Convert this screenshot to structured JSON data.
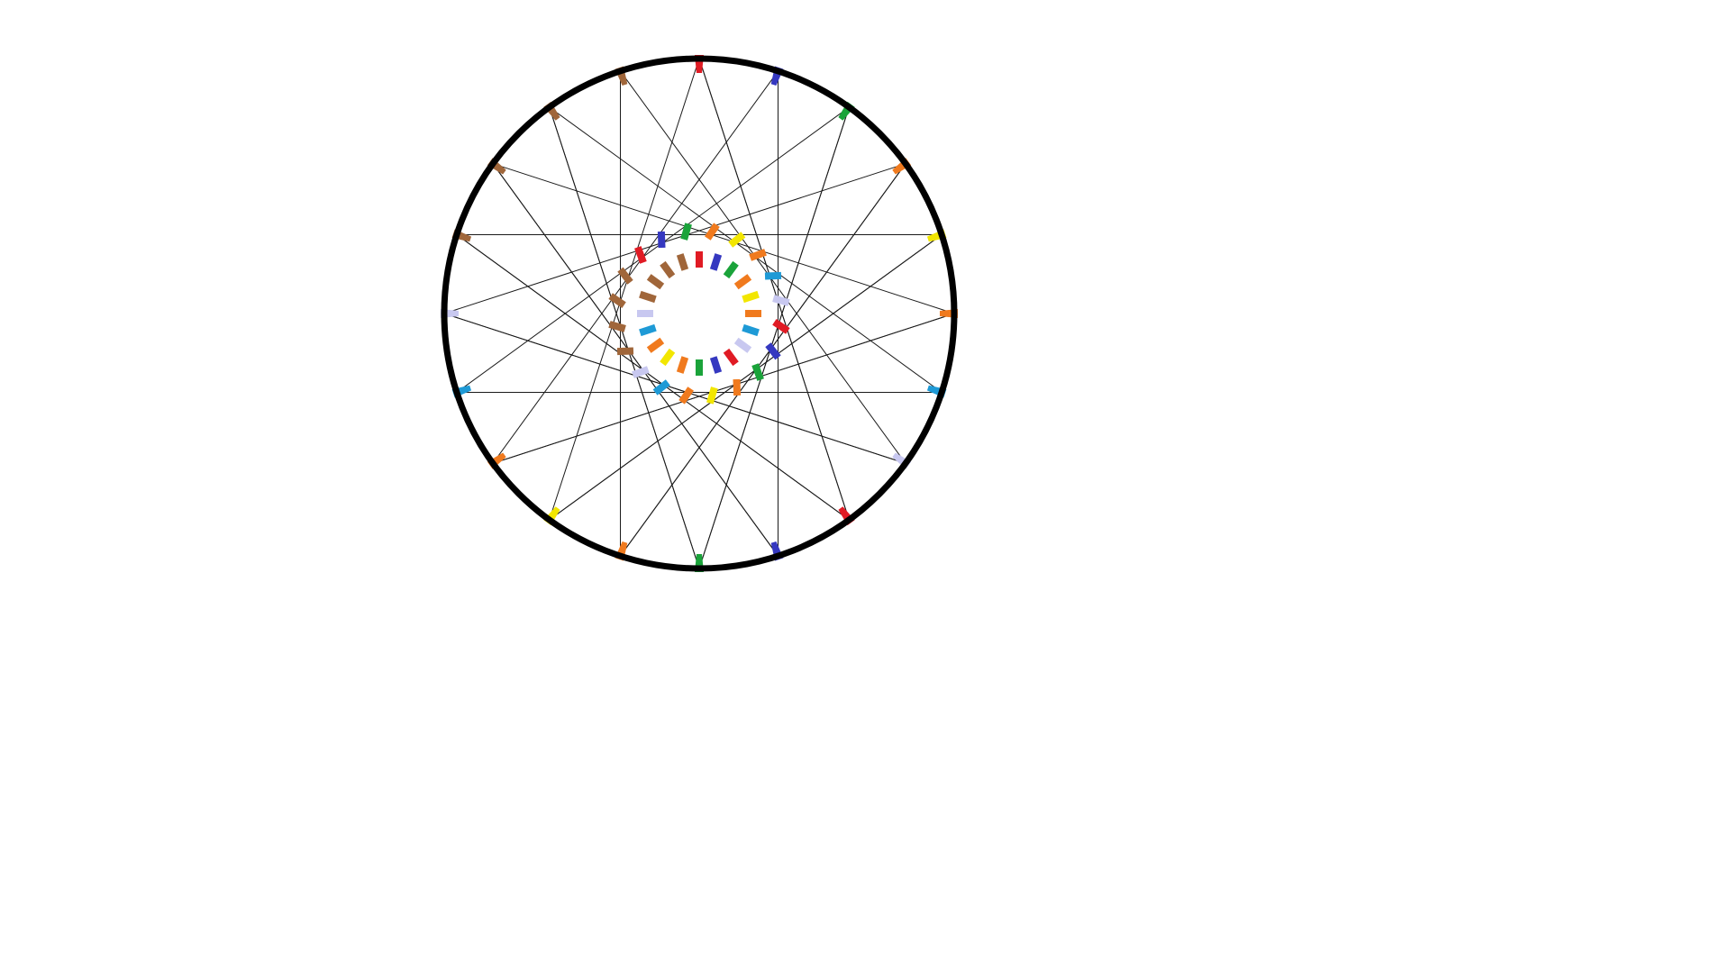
{
  "diagram": {
    "background": "#ffffff",
    "rim_color": "#000000",
    "line_color": "#1a1a1a",
    "spoke_count": 20,
    "marker_colors": [
      "#e01b24",
      "#3538c0",
      "#1aa33a",
      "#f07a1e",
      "#f2e600",
      "#f07a1e",
      "#1e9ad6",
      "#c8c8f0",
      "#e01b24",
      "#3538c0",
      "#1aa33a",
      "#f07a1e",
      "#f2e600",
      "#f07a1e",
      "#1e9ad6",
      "#c8c8f0",
      "#a0663a",
      "#a0663a",
      "#a0663a",
      "#a0663a"
    ],
    "angle_sequence_deg": [
      -90,
      -70,
      -50,
      -20,
      0,
      20,
      50,
      70,
      90,
      110,
      130,
      160,
      180,
      200,
      230,
      250,
      -20,
      160,
      200,
      20
    ]
  }
}
